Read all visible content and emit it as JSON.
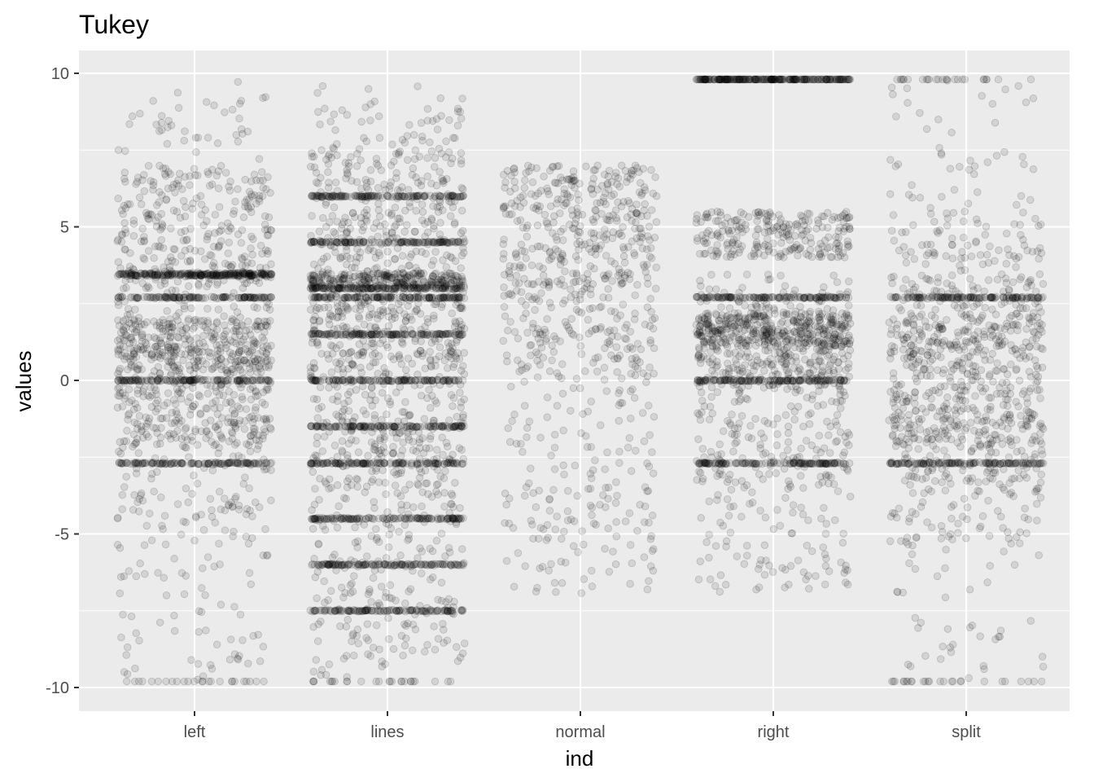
{
  "chart_data": {
    "type": "scatter",
    "title": "Tukey",
    "xlabel": "ind",
    "ylabel": "values",
    "categories": [
      "left",
      "lines",
      "normal",
      "right",
      "split"
    ],
    "yticks": [
      "10",
      "5",
      "0",
      "-5",
      "-10"
    ],
    "ylim": [
      -10.6,
      10.6
    ],
    "jitter_width": 0.4,
    "point_alpha": 0.1,
    "grid": true,
    "legend": "none",
    "panel_background": "#EBEBEB",
    "point_color": "#000000",
    "series": [
      {
        "category": "left",
        "concentrations": [
          2.7,
          0,
          -2.7
        ],
        "value_range": [
          -9.8,
          9.8
        ],
        "clusters": [
          [
            -9.8,
            9.8
          ],
          [
            -5.5,
            4.0
          ],
          [
            3.4,
            3.5
          ],
          [
            0.2,
            2.0
          ],
          [
            -2.2,
            1.1
          ],
          [
            7.0,
            3.0
          ]
        ]
      },
      {
        "category": "lines",
        "concentrations": [
          6.0,
          4.5,
          3.0,
          2.7,
          1.5,
          0,
          -1.5,
          -2.7,
          -4.5,
          -6.0,
          -7.5
        ],
        "value_range": [
          -9.8,
          9.8
        ],
        "clusters": [
          [
            -9.8,
            9.8
          ],
          [
            9.0,
            0.4
          ],
          [
            -9.0,
            0.4
          ],
          [
            7.5,
            0.4
          ],
          [
            -3.5,
            3.0
          ],
          [
            3.5,
            3.0
          ]
        ]
      },
      {
        "category": "normal",
        "concentrations": [],
        "value_range": [
          -9.8,
          9.8
        ],
        "clusters": [
          [
            0.0,
            7.0
          ],
          [
            7.0,
            3.0
          ],
          [
            -7.0,
            3.0
          ]
        ]
      },
      {
        "category": "right",
        "concentrations": [
          2.7,
          0,
          -2.7
        ],
        "value_range": [
          -9.8,
          9.8
        ],
        "clusters": [
          [
            9.8,
            9.8
          ],
          [
            5.5,
            4.0
          ],
          [
            -3.4,
            3.5
          ],
          [
            -0.2,
            2.0
          ],
          [
            2.2,
            1.1
          ],
          [
            -7.0,
            3.0
          ]
        ]
      },
      {
        "category": "split",
        "concentrations": [
          2.7,
          -2.7
        ],
        "value_range": [
          -9.8,
          9.8
        ],
        "clusters": [
          [
            9.8,
            -9.8
          ],
          [
            5.5,
            -5.5
          ],
          [
            2.2,
            -2.2
          ],
          [
            3.4,
            -3.4
          ]
        ]
      }
    ]
  }
}
